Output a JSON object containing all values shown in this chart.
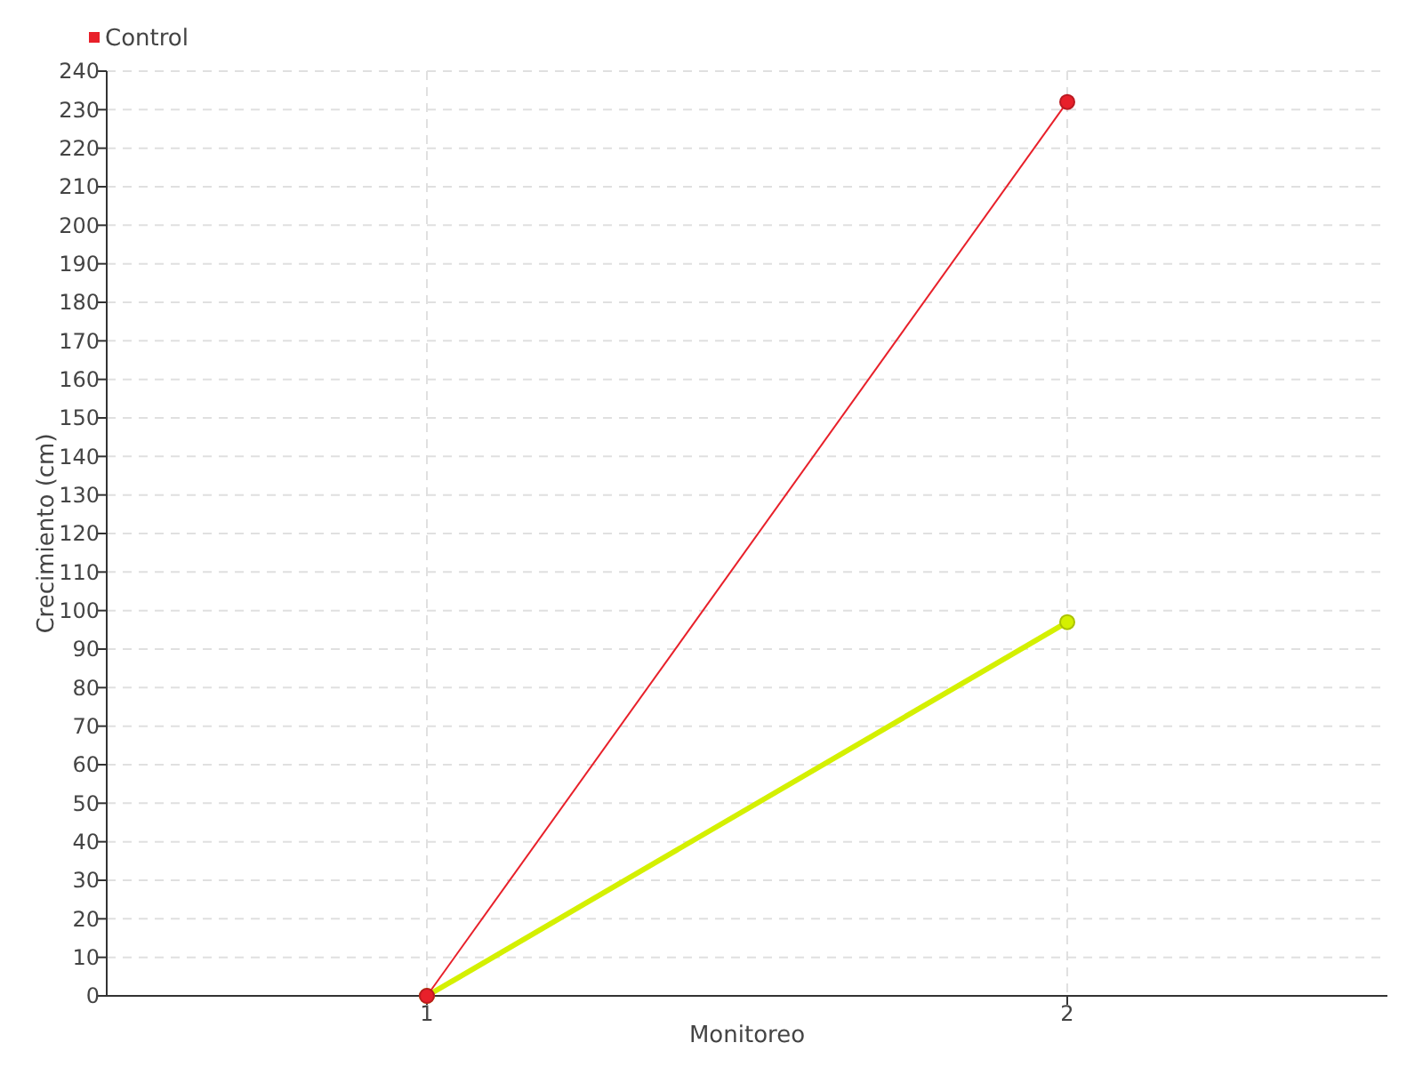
{
  "chart_data": {
    "type": "line",
    "xlabel": "Monitoreo",
    "ylabel": "Crecimiento (cm)",
    "x": [
      1,
      2
    ],
    "xlim": [
      0.5,
      2.5
    ],
    "xticks": [
      1,
      2
    ],
    "ylim": [
      0,
      240
    ],
    "yticks": [
      0,
      10,
      20,
      30,
      40,
      50,
      60,
      70,
      80,
      90,
      100,
      110,
      120,
      130,
      140,
      150,
      160,
      170,
      180,
      190,
      200,
      210,
      220,
      230,
      240
    ],
    "grid": true,
    "legend": "top left",
    "marker": "circle",
    "series": [
      {
        "color": "#d4f000",
        "values": [
          0,
          97
        ]
      },
      {
        "name": "Control",
        "color": "#e8202a",
        "values": [
          0,
          232
        ]
      }
    ]
  }
}
